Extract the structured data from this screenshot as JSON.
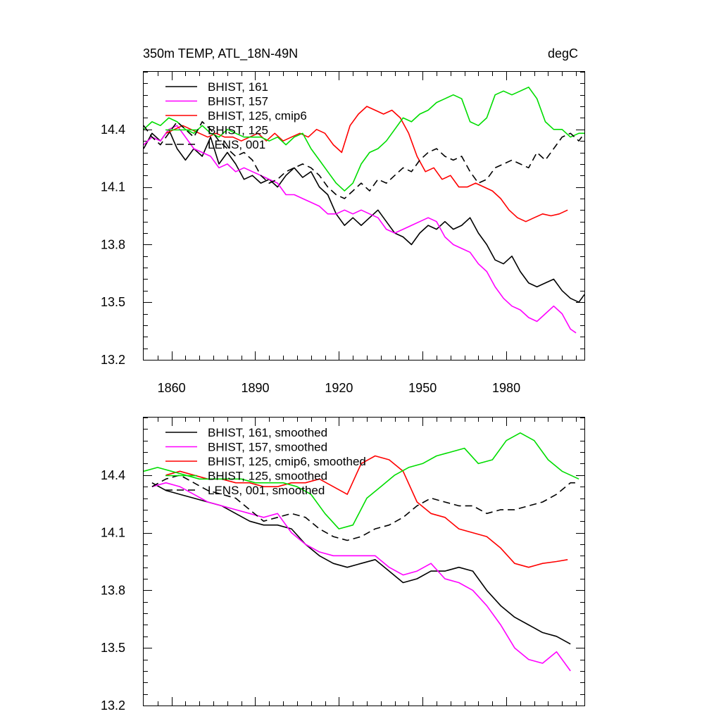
{
  "chart_data": [
    {
      "type": "line",
      "title": "350m TEMP, ATL_18N-49N",
      "units": "degC",
      "xlim": [
        1850,
        2008
      ],
      "ylim": [
        13.2,
        14.7
      ],
      "yticks": [
        13.2,
        13.5,
        13.8,
        14.1,
        14.4
      ],
      "ytick_labels": [
        "13.2",
        "13.5",
        "13.8",
        "14.1",
        "14.4"
      ],
      "xticks": [
        1860,
        1890,
        1920,
        1950,
        1980
      ],
      "xtick_labels": [
        "1860",
        "1890",
        "1920",
        "1950",
        "1980"
      ],
      "show_xtick_labels": true,
      "legend_position": "top-left",
      "series": [
        {
          "name": "BHIST, 161",
          "color": "#000000",
          "dash": "solid",
          "x": [
            1850,
            1853,
            1856,
            1859,
            1862,
            1865,
            1868,
            1871,
            1874,
            1877,
            1880,
            1883,
            1886,
            1889,
            1892,
            1895,
            1898,
            1901,
            1904,
            1907,
            1910,
            1913,
            1916,
            1919,
            1922,
            1925,
            1928,
            1931,
            1934,
            1937,
            1940,
            1943,
            1946,
            1949,
            1952,
            1955,
            1958,
            1961,
            1964,
            1967,
            1970,
            1973,
            1976,
            1979,
            1982,
            1985,
            1988,
            1991,
            1994,
            1997,
            2000,
            2003,
            2006,
            2008
          ],
          "y": [
            14.3,
            14.38,
            14.34,
            14.4,
            14.3,
            14.24,
            14.3,
            14.26,
            14.36,
            14.22,
            14.28,
            14.22,
            14.14,
            14.16,
            14.12,
            14.14,
            14.1,
            14.16,
            14.2,
            14.15,
            14.18,
            14.1,
            14.06,
            13.96,
            13.9,
            13.94,
            13.9,
            13.94,
            13.98,
            13.92,
            13.86,
            13.84,
            13.8,
            13.86,
            13.9,
            13.88,
            13.92,
            13.88,
            13.9,
            13.94,
            13.86,
            13.8,
            13.72,
            13.7,
            13.74,
            13.66,
            13.6,
            13.58,
            13.6,
            13.62,
            13.56,
            13.52,
            13.5,
            13.54
          ]
        },
        {
          "name": "BHIST, 157",
          "color": "#ff00ff",
          "dash": "solid",
          "x": [
            1850,
            1853,
            1856,
            1859,
            1862,
            1865,
            1868,
            1871,
            1874,
            1877,
            1880,
            1883,
            1886,
            1889,
            1892,
            1895,
            1898,
            1901,
            1904,
            1907,
            1910,
            1913,
            1916,
            1919,
            1922,
            1925,
            1928,
            1931,
            1934,
            1937,
            1940,
            1943,
            1946,
            1949,
            1952,
            1955,
            1958,
            1961,
            1964,
            1967,
            1970,
            1973,
            1976,
            1979,
            1982,
            1985,
            1988,
            1991,
            1994,
            1997,
            2000,
            2003,
            2005
          ],
          "y": [
            14.32,
            14.36,
            14.34,
            14.4,
            14.42,
            14.36,
            14.3,
            14.28,
            14.26,
            14.2,
            14.22,
            14.18,
            14.2,
            14.18,
            14.16,
            14.14,
            14.12,
            14.06,
            14.06,
            14.04,
            14.02,
            14.0,
            13.96,
            13.96,
            13.98,
            13.96,
            13.98,
            13.96,
            13.94,
            13.88,
            13.86,
            13.88,
            13.9,
            13.92,
            13.94,
            13.92,
            13.84,
            13.8,
            13.78,
            13.76,
            13.7,
            13.66,
            13.58,
            13.52,
            13.48,
            13.46,
            13.42,
            13.4,
            13.44,
            13.48,
            13.44,
            13.36,
            13.34
          ]
        },
        {
          "name": "BHIST, 125, cmip6",
          "color": "#ff0000",
          "dash": "solid",
          "x": [
            1858,
            1861,
            1864,
            1867,
            1870,
            1873,
            1876,
            1879,
            1882,
            1885,
            1888,
            1891,
            1894,
            1897,
            1900,
            1903,
            1906,
            1909,
            1912,
            1915,
            1918,
            1921,
            1924,
            1927,
            1930,
            1933,
            1936,
            1939,
            1942,
            1945,
            1948,
            1951,
            1954,
            1957,
            1960,
            1963,
            1966,
            1969,
            1972,
            1975,
            1978,
            1981,
            1984,
            1987,
            1990,
            1993,
            1996,
            1999,
            2002
          ],
          "y": [
            14.38,
            14.4,
            14.42,
            14.4,
            14.38,
            14.36,
            14.38,
            14.36,
            14.36,
            14.34,
            14.36,
            14.38,
            14.34,
            14.38,
            14.34,
            14.36,
            14.38,
            14.36,
            14.4,
            14.38,
            14.32,
            14.28,
            14.42,
            14.48,
            14.52,
            14.5,
            14.48,
            14.5,
            14.46,
            14.38,
            14.26,
            14.18,
            14.2,
            14.14,
            14.16,
            14.1,
            14.1,
            14.12,
            14.1,
            14.08,
            14.04,
            13.98,
            13.94,
            13.92,
            13.94,
            13.96,
            13.95,
            13.96,
            13.98
          ]
        },
        {
          "name": "BHIST, 125",
          "color": "#00dd00",
          "dash": "solid",
          "x": [
            1850,
            1853,
            1856,
            1859,
            1862,
            1865,
            1868,
            1871,
            1874,
            1877,
            1880,
            1883,
            1886,
            1889,
            1892,
            1895,
            1898,
            1901,
            1904,
            1907,
            1910,
            1913,
            1916,
            1919,
            1922,
            1925,
            1928,
            1931,
            1934,
            1937,
            1940,
            1943,
            1946,
            1949,
            1952,
            1955,
            1958,
            1961,
            1964,
            1967,
            1970,
            1973,
            1976,
            1979,
            1982,
            1985,
            1988,
            1991,
            1994,
            1997,
            2000,
            2003,
            2006,
            2008
          ],
          "y": [
            14.4,
            14.44,
            14.42,
            14.46,
            14.44,
            14.4,
            14.38,
            14.42,
            14.38,
            14.36,
            14.4,
            14.38,
            14.36,
            14.36,
            14.36,
            14.34,
            14.36,
            14.32,
            14.36,
            14.38,
            14.3,
            14.24,
            14.18,
            14.12,
            14.08,
            14.12,
            14.22,
            14.28,
            14.3,
            14.34,
            14.4,
            14.46,
            14.44,
            14.48,
            14.5,
            14.54,
            14.56,
            14.58,
            14.56,
            14.44,
            14.42,
            14.46,
            14.58,
            14.6,
            14.58,
            14.6,
            14.62,
            14.56,
            14.44,
            14.4,
            14.4,
            14.36,
            14.38,
            14.38
          ]
        },
        {
          "name": "LENS, 001",
          "color": "#000000",
          "dash": "dashed",
          "x": [
            1850,
            1853,
            1856,
            1859,
            1862,
            1865,
            1868,
            1871,
            1874,
            1877,
            1880,
            1883,
            1886,
            1889,
            1892,
            1895,
            1898,
            1901,
            1904,
            1907,
            1910,
            1913,
            1916,
            1919,
            1922,
            1925,
            1928,
            1931,
            1934,
            1937,
            1940,
            1943,
            1946,
            1949,
            1952,
            1955,
            1958,
            1961,
            1964,
            1967,
            1970,
            1973,
            1976,
            1979,
            1982,
            1985,
            1988,
            1991,
            1994,
            1997,
            2000,
            2003,
            2006,
            2008
          ],
          "y": [
            14.42,
            14.36,
            14.32,
            14.38,
            14.44,
            14.4,
            14.36,
            14.44,
            14.4,
            14.34,
            14.3,
            14.26,
            14.28,
            14.24,
            14.16,
            14.12,
            14.14,
            14.18,
            14.2,
            14.22,
            14.2,
            14.16,
            14.1,
            14.06,
            14.04,
            14.08,
            14.12,
            14.08,
            14.14,
            14.12,
            14.16,
            14.2,
            14.18,
            14.24,
            14.28,
            14.3,
            14.26,
            14.24,
            14.26,
            14.18,
            14.12,
            14.14,
            14.2,
            14.22,
            14.24,
            14.22,
            14.2,
            14.28,
            14.24,
            14.3,
            14.36,
            14.38,
            14.34,
            14.38
          ]
        }
      ]
    },
    {
      "type": "line",
      "title": "",
      "units": "",
      "xlim": [
        1850,
        2008
      ],
      "ylim": [
        13.2,
        14.7
      ],
      "yticks": [
        13.2,
        13.5,
        13.8,
        14.1,
        14.4
      ],
      "ytick_labels": [
        "13.2",
        "13.5",
        "13.8",
        "14.1",
        "14.4"
      ],
      "xticks": [
        1860,
        1890,
        1920,
        1950,
        1980
      ],
      "xtick_labels": [],
      "show_xtick_labels": false,
      "legend_position": "top-left",
      "series": [
        {
          "name": "BHIST, 161, smoothed",
          "color": "#000000",
          "dash": "solid",
          "x": [
            1853,
            1858,
            1863,
            1868,
            1873,
            1878,
            1883,
            1888,
            1893,
            1898,
            1903,
            1908,
            1913,
            1918,
            1923,
            1928,
            1933,
            1938,
            1943,
            1948,
            1953,
            1958,
            1963,
            1968,
            1973,
            1978,
            1983,
            1988,
            1993,
            1998,
            2003
          ],
          "y": [
            14.36,
            14.32,
            14.3,
            14.28,
            14.26,
            14.24,
            14.2,
            14.16,
            14.14,
            14.14,
            14.12,
            14.04,
            13.98,
            13.94,
            13.92,
            13.94,
            13.96,
            13.9,
            13.84,
            13.86,
            13.9,
            13.9,
            13.92,
            13.9,
            13.8,
            13.72,
            13.66,
            13.62,
            13.58,
            13.56,
            13.52
          ]
        },
        {
          "name": "BHIST, 157, smoothed",
          "color": "#ff00ff",
          "dash": "solid",
          "x": [
            1853,
            1858,
            1863,
            1868,
            1873,
            1878,
            1883,
            1888,
            1893,
            1898,
            1903,
            1908,
            1913,
            1918,
            1923,
            1928,
            1933,
            1938,
            1943,
            1948,
            1953,
            1958,
            1963,
            1968,
            1973,
            1978,
            1983,
            1988,
            1993,
            1998,
            2003
          ],
          "y": [
            14.34,
            14.36,
            14.34,
            14.3,
            14.26,
            14.24,
            14.22,
            14.2,
            14.18,
            14.2,
            14.1,
            14.04,
            14.0,
            13.98,
            13.98,
            13.98,
            13.98,
            13.92,
            13.88,
            13.9,
            13.94,
            13.86,
            13.84,
            13.8,
            13.72,
            13.62,
            13.5,
            13.44,
            13.42,
            13.48,
            13.38
          ]
        },
        {
          "name": "BHIST, 125, cmip6, smoothed",
          "color": "#ff0000",
          "dash": "solid",
          "x": [
            1858,
            1863,
            1868,
            1873,
            1878,
            1883,
            1888,
            1893,
            1898,
            1903,
            1908,
            1913,
            1918,
            1923,
            1928,
            1933,
            1938,
            1943,
            1948,
            1953,
            1958,
            1963,
            1968,
            1973,
            1978,
            1983,
            1988,
            1993,
            1998,
            2002
          ],
          "y": [
            14.4,
            14.42,
            14.4,
            14.38,
            14.38,
            14.36,
            14.36,
            14.34,
            14.34,
            14.36,
            14.36,
            14.38,
            14.34,
            14.3,
            14.46,
            14.5,
            14.48,
            14.42,
            14.26,
            14.2,
            14.18,
            14.12,
            14.1,
            14.08,
            14.02,
            13.94,
            13.92,
            13.94,
            13.95,
            13.96
          ]
        },
        {
          "name": "BHIST, 125, smoothed",
          "color": "#00dd00",
          "dash": "solid",
          "x": [
            1850,
            1855,
            1860,
            1865,
            1870,
            1875,
            1880,
            1885,
            1890,
            1895,
            1900,
            1905,
            1910,
            1915,
            1920,
            1925,
            1930,
            1935,
            1940,
            1945,
            1950,
            1955,
            1960,
            1965,
            1970,
            1975,
            1980,
            1985,
            1990,
            1995,
            2000,
            2003,
            2006
          ],
          "y": [
            14.42,
            14.44,
            14.42,
            14.4,
            14.38,
            14.38,
            14.38,
            14.38,
            14.36,
            14.36,
            14.36,
            14.34,
            14.3,
            14.2,
            14.12,
            14.14,
            14.28,
            14.34,
            14.4,
            14.44,
            14.46,
            14.5,
            14.52,
            14.54,
            14.46,
            14.48,
            14.58,
            14.62,
            14.58,
            14.48,
            14.42,
            14.4,
            14.38
          ]
        },
        {
          "name": "LENS, 001, smoothed",
          "color": "#000000",
          "dash": "dashed",
          "x": [
            1853,
            1858,
            1863,
            1868,
            1873,
            1878,
            1883,
            1888,
            1893,
            1898,
            1903,
            1908,
            1913,
            1918,
            1923,
            1928,
            1933,
            1938,
            1943,
            1948,
            1953,
            1958,
            1963,
            1968,
            1973,
            1978,
            1983,
            1988,
            1993,
            1998,
            2003,
            2006
          ],
          "y": [
            14.34,
            14.38,
            14.4,
            14.36,
            14.32,
            14.3,
            14.28,
            14.22,
            14.16,
            14.18,
            14.2,
            14.18,
            14.12,
            14.08,
            14.06,
            14.08,
            14.12,
            14.14,
            14.18,
            14.24,
            14.28,
            14.26,
            14.24,
            14.24,
            14.2,
            14.22,
            14.22,
            14.24,
            14.26,
            14.3,
            14.36,
            14.36
          ]
        }
      ]
    }
  ]
}
